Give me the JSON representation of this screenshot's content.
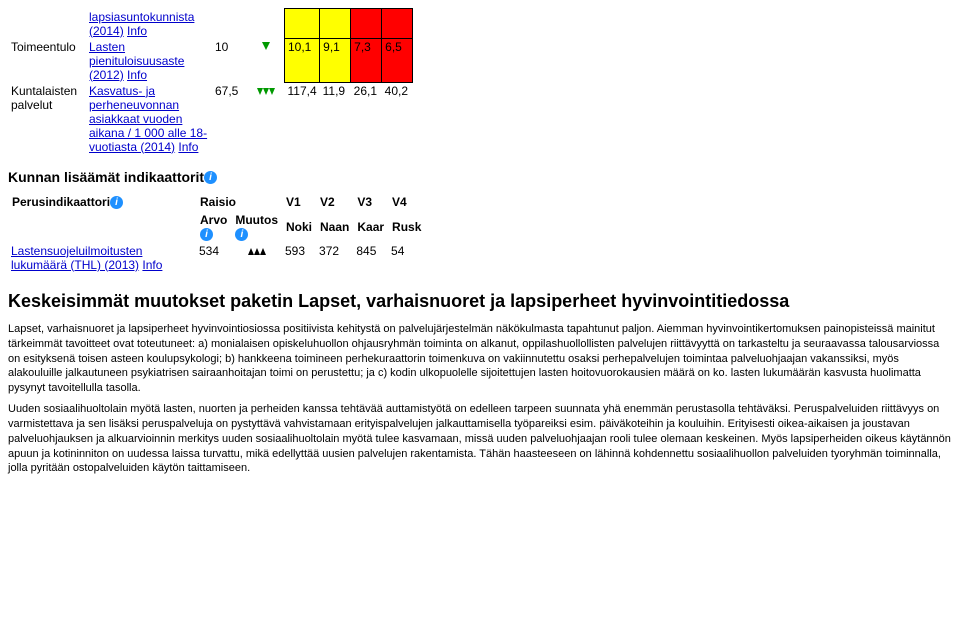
{
  "table1": {
    "r0": {
      "indicator_html": "<a href='#'>lapsiasuntokunnista (2014)</a> <a href='#'>Info</a>"
    },
    "r1": {
      "cat": "Toimeentulo",
      "indicator_html": "<a href='#'>Lasten pienituloisuusaste (2012)</a> <a href='#'>Info</a>",
      "arvo": "10",
      "v1": "10,1",
      "v2": "9,1",
      "v3": "7,3",
      "v4": "6,5"
    },
    "r2": {
      "cat": "Kuntalaisten palvelut",
      "indicator_html": "<a href='#'>Kasvatus- ja perheneuvonnan asiakkaat vuoden aikana / 1 000 alle 18-vuotiasta (2014)</a> <a href='#'>Info</a>",
      "arvo": "67,5",
      "v1": "117,4",
      "v2": "11,9",
      "v3": "26,1",
      "v4": "40,2"
    }
  },
  "section1": "Kunnan lisäämät indikaattorit",
  "table2": {
    "h_perus": "Perusindikaattori",
    "h_raisio": "Raisio",
    "h_arvo": "Arvo",
    "h_muutos": "Muutos",
    "h_v1": "V1",
    "h_v2": "V2",
    "h_v3": "V3",
    "h_v4": "V4",
    "h_noki": "Noki",
    "h_naan": "Naan",
    "h_kaar": "Kaar",
    "h_rusk": "Rusk",
    "row": {
      "label_html": "<a href='#'>Lastensuojeluilmoitusten lukumäärä (THL) (2013)</a> <a href='#'>Info</a>",
      "arvo": "534",
      "v1": "593",
      "v2": "372",
      "v3": "845",
      "v4": "54"
    }
  },
  "heading2": "Keskeisimmät muutokset paketin Lapset, varhaisnuoret ja lapsiperheet hyvinvointitiedossa",
  "para1": "Lapset, varhaisnuoret ja lapsiperheet hyvinvointiosiossa positiivista kehitystä on palvelujärjestelmän näkökulmasta tapahtunut paljon. Aiemman hyvinvointikertomuksen painopisteissä mainitut tärkeimmät tavoitteet ovat toteutuneet: a) monialaisen opiskeluhuollon ohjausryhmän toiminta on alkanut, oppilashuollollisten palvelujen riittävyyttä on tarkasteltu ja seuraavassa talousarviossa on esityksenä toisen asteen koulupsykologi; b) hankkeena toimineen perhekuraattorin toimenkuva on vakiinnutettu osaksi perhepalvelujen toimintaa palveluohjaajan vakanssiksi, myös alakouluille jalkautuneen psykiatrisen sairaanhoitajan toimi on perustettu; ja c) kodin ulkopuolelle sijoitettujen lasten hoitovuorokausien määrä on ko. lasten lukumäärän kasvusta huolimatta pysynyt tavoitellulla tasolla.",
  "para2": "Uuden sosiaalihuoltolain myötä lasten, nuorten ja perheiden kanssa tehtävää auttamistyötä on edelleen tarpeen suunnata yhä enemmän perustasolla tehtäväksi. Peruspalveluiden riittävyys on varmistettava ja sen lisäksi peruspalveluja on pystyttävä vahvistamaan erityispalvelujen jalkauttamisella työpareiksi esim. päiväkoteihin ja kouluihin. Erityisesti oikea-aikaisen ja joustavan palveluohjauksen ja alkuarvioinnin merkitys uuden sosiaalihuoltolain myötä tulee kasvamaan, missä uuden palveluohjaajan rooli tulee olemaan keskeinen. Myös lapsiperheiden oikeus käytännön apuun ja kotininniton on uudessa laissa turvattu, mikä edellyttää uusien palvelujen rakentamista. Tähän haasteeseen on lähinnä kohdennettu sosiaalihuollon palveluiden tyoryhmän toiminnalla, jolla pyritään ostopalveluiden käytön taittamiseen."
}
